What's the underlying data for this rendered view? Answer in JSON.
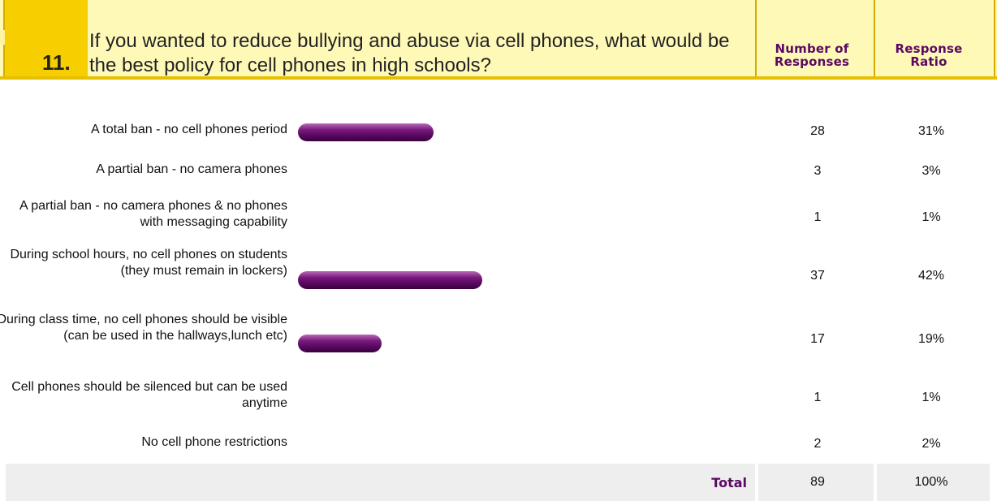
{
  "question": {
    "number": "11.",
    "text": "If you wanted to reduce bullying and abuse via cell phones, what would be the best policy for cell phones in high schools?"
  },
  "columns": {
    "responses_line1": "Number of",
    "responses_line2": "Responses",
    "ratio_line1": "Response",
    "ratio_line2": "Ratio"
  },
  "colors": {
    "header_bg": "#fff9b8",
    "number_col": "#f7cf00",
    "bar": "#5a0a62",
    "total_bg": "#eeeeee"
  },
  "answers": [
    {
      "label": "A total ban - no cell phones period",
      "count": "28",
      "ratio": "31%",
      "ratio_value": 31
    },
    {
      "label": "A partial ban - no camera phones",
      "count": "3",
      "ratio": "3%",
      "ratio_value": 3
    },
    {
      "label": "A partial ban - no camera phones & no phones with messaging capability",
      "count": "1",
      "ratio": "1%",
      "ratio_value": 1
    },
    {
      "label": "During school hours, no cell phones on students (they must remain in lockers)",
      "count": "37",
      "ratio": "42%",
      "ratio_value": 42
    },
    {
      "label": "During class time, no cell phones should be visible (can be used in the hallways,lunch etc)",
      "count": "17",
      "ratio": "19%",
      "ratio_value": 19
    },
    {
      "label": "Cell phones should be silenced but can be used anytime",
      "count": "1",
      "ratio": "1%",
      "ratio_value": 1
    },
    {
      "label": "No cell phone restrictions",
      "count": "2",
      "ratio": "2%",
      "ratio_value": 2
    }
  ],
  "total": {
    "label": "Total",
    "count": "89",
    "ratio": "100%"
  }
}
